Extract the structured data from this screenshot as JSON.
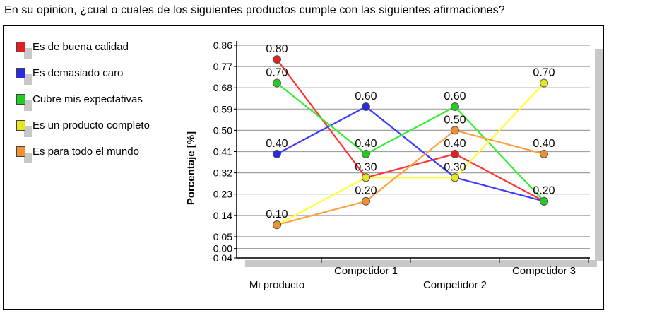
{
  "question": "En su opinion, ¿cual o cuales de los siguientes productos cumple con las siguientes afirmaciones?",
  "chart_data": {
    "type": "line",
    "title": "",
    "xlabel": "",
    "ylabel": "Porcentaje [%]",
    "categories": [
      "Mi producto",
      "Competidor 1",
      "Competidor 2",
      "Competidor 3"
    ],
    "yticks": [
      "0.86",
      "0.77",
      "0.68",
      "0.59",
      "0.50",
      "0.41",
      "0.32",
      "0.23",
      "0.14",
      "0.05",
      "0.00",
      "-0.04"
    ],
    "ylim": [
      -0.04,
      0.86
    ],
    "grid": true,
    "legend_position": "left",
    "series": [
      {
        "name": "Es de buena calidad",
        "color": "#ff3333",
        "marker": "#e02020",
        "values": [
          0.8,
          0.3,
          0.4,
          0.2
        ],
        "labels": [
          "0.80",
          "",
          "0.40",
          ""
        ]
      },
      {
        "name": "Es demasiado caro",
        "color": "#3c3cff",
        "marker": "#2a2ae0",
        "values": [
          0.4,
          0.6,
          0.3,
          0.2
        ],
        "labels": [
          "0.40",
          "0.60",
          "",
          ""
        ]
      },
      {
        "name": "Cubre mis expectativas",
        "color": "#33ee33",
        "marker": "#22cc22",
        "values": [
          0.7,
          0.4,
          0.6,
          0.2
        ],
        "labels": [
          "0.70",
          "0.40",
          "0.60",
          "0.20"
        ]
      },
      {
        "name": "Es un producto completo",
        "color": "#ffff33",
        "marker": "#e8e820",
        "values": [
          0.1,
          0.3,
          0.3,
          0.7
        ],
        "labels": [
          "",
          "0.30",
          "0.30",
          "0.70"
        ]
      },
      {
        "name": "Es para todo el mundo",
        "color": "#ffa040",
        "marker": "#f09030",
        "values": [
          0.1,
          0.2,
          0.5,
          0.4
        ],
        "labels": [
          "0.10",
          "0.20",
          "0.50",
          "0.40"
        ]
      }
    ]
  }
}
